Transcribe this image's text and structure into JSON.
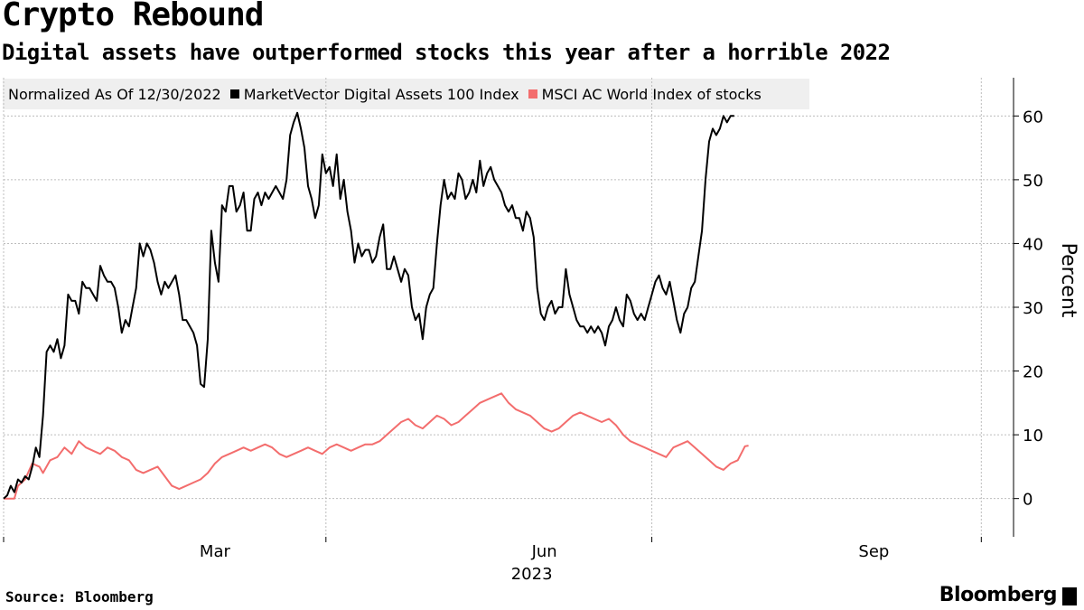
{
  "title": "Crypto Rebound",
  "subtitle": "Digital assets have outperformed stocks this year after a horrible 2022",
  "source": "Source: Bloomberg",
  "brand": "Bloomberg",
  "chart_data": {
    "type": "line",
    "title": "Crypto Rebound",
    "subtitle": "Digital assets have outperformed stocks this year after a horrible 2022",
    "legend_label": "Normalized As Of 12/30/2022",
    "xlabel": "2023",
    "ylabel": "Percent",
    "ylim": [
      -6,
      66
    ],
    "yticks": [
      0,
      10,
      20,
      30,
      40,
      50,
      60
    ],
    "x_domain_days": [
      0,
      282
    ],
    "xticks": [
      {
        "label": "Mar",
        "day": 59
      },
      {
        "label": "Jun",
        "day": 151
      },
      {
        "label": "Sep",
        "day": 243
      }
    ],
    "xgrid_days": [
      0,
      90,
      181,
      273
    ],
    "grid": true,
    "series": [
      {
        "name": "MarketVector Digital Assets 100 Index",
        "color": "#000000",
        "points": [
          [
            0,
            0
          ],
          [
            1,
            0.5
          ],
          [
            2,
            2
          ],
          [
            3,
            1
          ],
          [
            4,
            3
          ],
          [
            5,
            2.5
          ],
          [
            6,
            3.5
          ],
          [
            7,
            3
          ],
          [
            8,
            5
          ],
          [
            9,
            8
          ],
          [
            10,
            6.5
          ],
          [
            11,
            13
          ],
          [
            12,
            23
          ],
          [
            13,
            24
          ],
          [
            14,
            23
          ],
          [
            15,
            25
          ],
          [
            16,
            22
          ],
          [
            17,
            24
          ],
          [
            18,
            32
          ],
          [
            19,
            31
          ],
          [
            20,
            31
          ],
          [
            21,
            29
          ],
          [
            22,
            34
          ],
          [
            23,
            33
          ],
          [
            24,
            33
          ],
          [
            25,
            32
          ],
          [
            26,
            31
          ],
          [
            27,
            36.5
          ],
          [
            28,
            35
          ],
          [
            29,
            34
          ],
          [
            30,
            34
          ],
          [
            31,
            33
          ],
          [
            32,
            30
          ],
          [
            33,
            26
          ],
          [
            34,
            28
          ],
          [
            35,
            27
          ],
          [
            36,
            30
          ],
          [
            37,
            33
          ],
          [
            38,
            40
          ],
          [
            39,
            38
          ],
          [
            40,
            40
          ],
          [
            41,
            39
          ],
          [
            42,
            37
          ],
          [
            43,
            34
          ],
          [
            44,
            32
          ],
          [
            45,
            34
          ],
          [
            46,
            33
          ],
          [
            47,
            34
          ],
          [
            48,
            35
          ],
          [
            49,
            32
          ],
          [
            50,
            28
          ],
          [
            51,
            28
          ],
          [
            52,
            27
          ],
          [
            53,
            26
          ],
          [
            54,
            24
          ],
          [
            55,
            18
          ],
          [
            56,
            17.5
          ],
          [
            57,
            25
          ],
          [
            58,
            42
          ],
          [
            59,
            37
          ],
          [
            60,
            34
          ],
          [
            61,
            46
          ],
          [
            62,
            45
          ],
          [
            63,
            49
          ],
          [
            64,
            49
          ],
          [
            65,
            45
          ],
          [
            66,
            46
          ],
          [
            67,
            48
          ],
          [
            68,
            42
          ],
          [
            69,
            42
          ],
          [
            70,
            47
          ],
          [
            71,
            48
          ],
          [
            72,
            46
          ],
          [
            73,
            48
          ],
          [
            74,
            47
          ],
          [
            75,
            48
          ],
          [
            76,
            49
          ],
          [
            77,
            48
          ],
          [
            78,
            47
          ],
          [
            79,
            50
          ],
          [
            80,
            57
          ],
          [
            81,
            59
          ],
          [
            82,
            60.5
          ],
          [
            83,
            58
          ],
          [
            84,
            55
          ],
          [
            85,
            49
          ],
          [
            86,
            47
          ],
          [
            87,
            44
          ],
          [
            88,
            46
          ],
          [
            89,
            54
          ],
          [
            90,
            51
          ],
          [
            91,
            52
          ],
          [
            92,
            49
          ],
          [
            93,
            54
          ],
          [
            94,
            47
          ],
          [
            95,
            50
          ],
          [
            96,
            45
          ],
          [
            97,
            42
          ],
          [
            98,
            37
          ],
          [
            99,
            40
          ],
          [
            100,
            38
          ],
          [
            101,
            39
          ],
          [
            102,
            39
          ],
          [
            103,
            37
          ],
          [
            104,
            38
          ],
          [
            105,
            41
          ],
          [
            106,
            43
          ],
          [
            107,
            36
          ],
          [
            108,
            36
          ],
          [
            109,
            38
          ],
          [
            110,
            36
          ],
          [
            111,
            34
          ],
          [
            112,
            36
          ],
          [
            113,
            35
          ],
          [
            114,
            30
          ],
          [
            115,
            28
          ],
          [
            116,
            29
          ],
          [
            117,
            25
          ],
          [
            118,
            30
          ],
          [
            119,
            32
          ],
          [
            120,
            33
          ],
          [
            121,
            40
          ],
          [
            122,
            46
          ],
          [
            123,
            50
          ],
          [
            124,
            47
          ],
          [
            125,
            48
          ],
          [
            126,
            47
          ],
          [
            127,
            51
          ],
          [
            128,
            50
          ],
          [
            129,
            47
          ],
          [
            130,
            48
          ],
          [
            131,
            50
          ],
          [
            132,
            48
          ],
          [
            133,
            53
          ],
          [
            134,
            49
          ],
          [
            135,
            51
          ],
          [
            136,
            52
          ],
          [
            137,
            50
          ],
          [
            138,
            49
          ],
          [
            139,
            48
          ],
          [
            140,
            46
          ],
          [
            141,
            45
          ],
          [
            142,
            46
          ],
          [
            143,
            44
          ],
          [
            144,
            44
          ],
          [
            145,
            42
          ],
          [
            146,
            45
          ],
          [
            147,
            44
          ],
          [
            148,
            41
          ],
          [
            149,
            33
          ],
          [
            150,
            29
          ],
          [
            151,
            28
          ],
          [
            152,
            30
          ],
          [
            153,
            31
          ],
          [
            154,
            29
          ],
          [
            155,
            30
          ],
          [
            156,
            30
          ],
          [
            157,
            36
          ],
          [
            158,
            32
          ],
          [
            159,
            30
          ],
          [
            160,
            28
          ],
          [
            161,
            27
          ],
          [
            162,
            27
          ],
          [
            163,
            26
          ],
          [
            164,
            27
          ],
          [
            165,
            26
          ],
          [
            166,
            27
          ],
          [
            167,
            26
          ],
          [
            168,
            24
          ],
          [
            169,
            27
          ],
          [
            170,
            28
          ],
          [
            171,
            30
          ],
          [
            172,
            28
          ],
          [
            173,
            27
          ],
          [
            174,
            32
          ],
          [
            175,
            31
          ],
          [
            176,
            29
          ],
          [
            177,
            28
          ],
          [
            178,
            29
          ],
          [
            179,
            28
          ],
          [
            180,
            30
          ],
          [
            181,
            32
          ],
          [
            182,
            34
          ],
          [
            183,
            35
          ],
          [
            184,
            33
          ],
          [
            185,
            32
          ],
          [
            186,
            34
          ],
          [
            187,
            31
          ],
          [
            188,
            28
          ],
          [
            189,
            26
          ],
          [
            190,
            29
          ],
          [
            191,
            30
          ],
          [
            192,
            33
          ],
          [
            193,
            34
          ],
          [
            194,
            38
          ],
          [
            195,
            42
          ],
          [
            196,
            50
          ],
          [
            197,
            56
          ],
          [
            198,
            58
          ],
          [
            199,
            57
          ],
          [
            200,
            58
          ],
          [
            201,
            60
          ],
          [
            202,
            59
          ],
          [
            203,
            60
          ],
          [
            204,
            60
          ]
        ]
      },
      {
        "name": "MSCI AC World Index of stocks",
        "color": "#f36d6d",
        "points": [
          [
            0,
            0
          ],
          [
            3,
            0
          ],
          [
            4,
            2
          ],
          [
            6,
            3
          ],
          [
            8,
            5.5
          ],
          [
            10,
            5
          ],
          [
            11,
            4
          ],
          [
            13,
            6
          ],
          [
            15,
            6.5
          ],
          [
            17,
            8
          ],
          [
            19,
            7
          ],
          [
            21,
            9
          ],
          [
            23,
            8
          ],
          [
            25,
            7.5
          ],
          [
            27,
            7
          ],
          [
            29,
            8
          ],
          [
            31,
            7.5
          ],
          [
            33,
            6.5
          ],
          [
            35,
            6
          ],
          [
            37,
            4.5
          ],
          [
            39,
            4
          ],
          [
            41,
            4.5
          ],
          [
            43,
            5
          ],
          [
            45,
            3.5
          ],
          [
            47,
            2
          ],
          [
            49,
            1.5
          ],
          [
            51,
            2
          ],
          [
            53,
            2.5
          ],
          [
            55,
            3
          ],
          [
            57,
            4
          ],
          [
            59,
            5.5
          ],
          [
            61,
            6.5
          ],
          [
            63,
            7
          ],
          [
            65,
            7.5
          ],
          [
            67,
            8
          ],
          [
            69,
            7.5
          ],
          [
            71,
            8
          ],
          [
            73,
            8.5
          ],
          [
            75,
            8
          ],
          [
            77,
            7
          ],
          [
            79,
            6.5
          ],
          [
            81,
            7
          ],
          [
            83,
            7.5
          ],
          [
            85,
            8
          ],
          [
            87,
            7.5
          ],
          [
            89,
            7
          ],
          [
            91,
            8
          ],
          [
            93,
            8.5
          ],
          [
            95,
            8
          ],
          [
            97,
            7.5
          ],
          [
            99,
            8
          ],
          [
            101,
            8.5
          ],
          [
            103,
            8.5
          ],
          [
            105,
            9
          ],
          [
            107,
            10
          ],
          [
            109,
            11
          ],
          [
            111,
            12
          ],
          [
            113,
            12.5
          ],
          [
            115,
            11.5
          ],
          [
            117,
            11
          ],
          [
            119,
            12
          ],
          [
            121,
            13
          ],
          [
            123,
            12.5
          ],
          [
            125,
            11.5
          ],
          [
            127,
            12
          ],
          [
            129,
            13
          ],
          [
            131,
            14
          ],
          [
            133,
            15
          ],
          [
            135,
            15.5
          ],
          [
            137,
            16
          ],
          [
            139,
            16.5
          ],
          [
            141,
            15
          ],
          [
            143,
            14
          ],
          [
            145,
            13.5
          ],
          [
            147,
            13
          ],
          [
            149,
            12
          ],
          [
            151,
            11
          ],
          [
            153,
            10.5
          ],
          [
            155,
            11
          ],
          [
            157,
            12
          ],
          [
            159,
            13
          ],
          [
            161,
            13.5
          ],
          [
            163,
            13
          ],
          [
            165,
            12.5
          ],
          [
            167,
            12
          ],
          [
            169,
            12.5
          ],
          [
            171,
            11.5
          ],
          [
            173,
            10
          ],
          [
            175,
            9
          ],
          [
            177,
            8.5
          ],
          [
            179,
            8
          ],
          [
            181,
            7.5
          ],
          [
            183,
            7
          ],
          [
            185,
            6.5
          ],
          [
            187,
            8
          ],
          [
            189,
            8.5
          ],
          [
            191,
            9
          ],
          [
            193,
            8
          ],
          [
            195,
            7
          ],
          [
            197,
            6
          ],
          [
            199,
            5
          ],
          [
            201,
            4.5
          ],
          [
            203,
            5.5
          ],
          [
            205,
            6
          ],
          [
            207,
            8.2
          ],
          [
            208,
            8.3
          ]
        ]
      }
    ]
  }
}
